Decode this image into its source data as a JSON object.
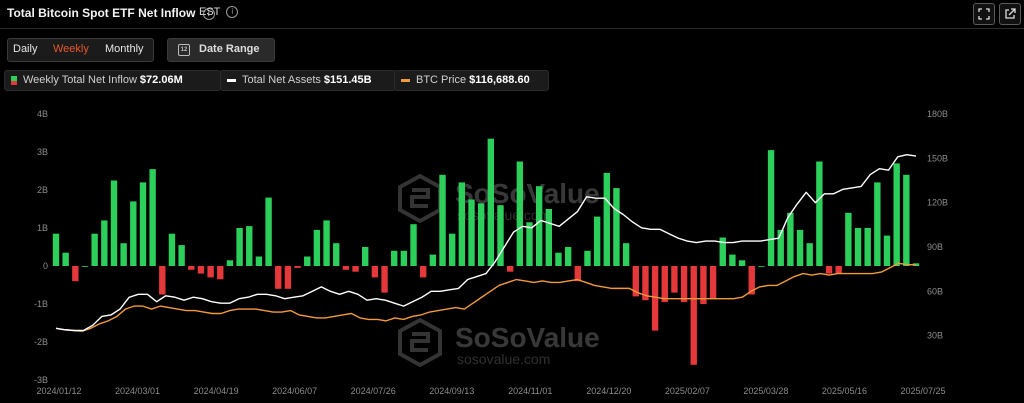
{
  "header": {
    "title": "Total Bitcoin Spot ETF Net Inflow",
    "info_glyph": "i",
    "timezone": "EST",
    "expand_icon": "expand-icon",
    "share_icon": "share-icon"
  },
  "controls": {
    "tabs": [
      "Daily",
      "Weekly",
      "Monthly"
    ],
    "active_tab": "Weekly",
    "date_range_label": "Date Range",
    "calendar_glyph": "12"
  },
  "legend": [
    {
      "label": "Weekly Total Net Inflow",
      "value": "$72.06M"
    },
    {
      "label": "Total Net Assets",
      "value": "$151.45B"
    },
    {
      "label": "BTC Price",
      "value": "$116,688.60"
    }
  ],
  "watermark": {
    "brand": "SoSoValue",
    "url": "sosovalue.com"
  },
  "colors": {
    "positive": "#2dcf5b",
    "negative": "#e5383b",
    "assets_line": "#ffffff",
    "price_line": "#f29a3a",
    "accent": "#e8572a"
  },
  "chart_data": {
    "type": "bar",
    "x_tick_labels": [
      "2024/01/12",
      "2024/03/01",
      "2024/04/19",
      "2024/06/07",
      "2024/07/26",
      "2024/09/13",
      "2024/11/01",
      "2024/12/20",
      "2025/02/07",
      "2025/03/28",
      "2025/05/16",
      "2025/07/25"
    ],
    "left_axis": {
      "ticks": [
        "4B",
        "3B",
        "2B",
        "1B",
        "0",
        "-1B",
        "-2B",
        "-3B"
      ],
      "range": [
        -3,
        4
      ]
    },
    "right_axis": {
      "ticks": [
        "180B",
        "150B",
        "120B",
        "90B",
        "60B",
        "30B"
      ],
      "range": [
        0,
        180
      ]
    },
    "grid": false,
    "series": [
      {
        "name": "Weekly Total Net Inflow",
        "axis": "left",
        "values": [
          0.85,
          0.35,
          -0.4,
          0,
          0.85,
          1.2,
          2.25,
          0.6,
          1.7,
          2.2,
          2.55,
          -0.75,
          0.85,
          0.55,
          -0.1,
          -0.2,
          -0.3,
          -0.35,
          0.15,
          1.0,
          1.05,
          0.25,
          1.8,
          -0.6,
          -0.6,
          -0.05,
          0.25,
          0.95,
          1.2,
          0.6,
          -0.1,
          -0.15,
          0.5,
          -0.3,
          -0.7,
          0.4,
          0.4,
          1.1,
          -0.3,
          0.3,
          2.4,
          0.85,
          2.2,
          1.75,
          1.65,
          3.35,
          1.6,
          -0.15,
          2.75,
          1.15,
          2.1,
          1.5,
          0.35,
          0.5,
          -0.4,
          0.4,
          1.3,
          2.45,
          2.05,
          0.6,
          -0.8,
          -0.9,
          -1.7,
          -0.95,
          -0.7,
          -0.95,
          -2.6,
          -1.0,
          -0.85,
          0.75,
          0.3,
          0.15,
          -0.75,
          0,
          3.05,
          0.95,
          1.4,
          0.95,
          0.6,
          2.75,
          -0.2,
          -0.2,
          1.4,
          1.0,
          1.0,
          2.2,
          0.8,
          2.7,
          2.4,
          0.07
        ]
      },
      {
        "name": "Total Net Assets",
        "axis": "right",
        "values": [
          35,
          34,
          33.5,
          33.5,
          37,
          43,
          44,
          48,
          56,
          58,
          58,
          53,
          57,
          56,
          54,
          56,
          55,
          53,
          52,
          52,
          55,
          56,
          58,
          58,
          57,
          55,
          56,
          57,
          60,
          63,
          60,
          58,
          60,
          58,
          54,
          55,
          54,
          52,
          50,
          53,
          56,
          60,
          60,
          61,
          62,
          68,
          70,
          72,
          80,
          90,
          100,
          104,
          103,
          108,
          106,
          104,
          109,
          114,
          124,
          123,
          123,
          116,
          112,
          107,
          103,
          102,
          102,
          99,
          96,
          94,
          93,
          94,
          94,
          93,
          93,
          94,
          94,
          94,
          95,
          96,
          110,
          119,
          127,
          120,
          126,
          126,
          129,
          130,
          131,
          139,
          143,
          142,
          151,
          152.5,
          151.5
        ]
      },
      {
        "name": "BTC Price",
        "axis": "right",
        "values": [
          35,
          34,
          33.5,
          33,
          35,
          38,
          40,
          43,
          48,
          50,
          50,
          48,
          50,
          49,
          48,
          47,
          47,
          46,
          45,
          45,
          47,
          48,
          48,
          48,
          47,
          46,
          46,
          47,
          44,
          43,
          42,
          42,
          43,
          44,
          45,
          42,
          41,
          41,
          40,
          42,
          41,
          43,
          44,
          46,
          47,
          48,
          49,
          48,
          52,
          56,
          60,
          64,
          66,
          68,
          67,
          66,
          67,
          66,
          66,
          67,
          68,
          66,
          64,
          63,
          62,
          62,
          62,
          59,
          57,
          56,
          55,
          55,
          55,
          55,
          55,
          55,
          55,
          55,
          55,
          56,
          60,
          63,
          64,
          64,
          67,
          70,
          72,
          71,
          72,
          71,
          72,
          72,
          72,
          72,
          72,
          73,
          76,
          79,
          78,
          78
        ]
      }
    ]
  }
}
